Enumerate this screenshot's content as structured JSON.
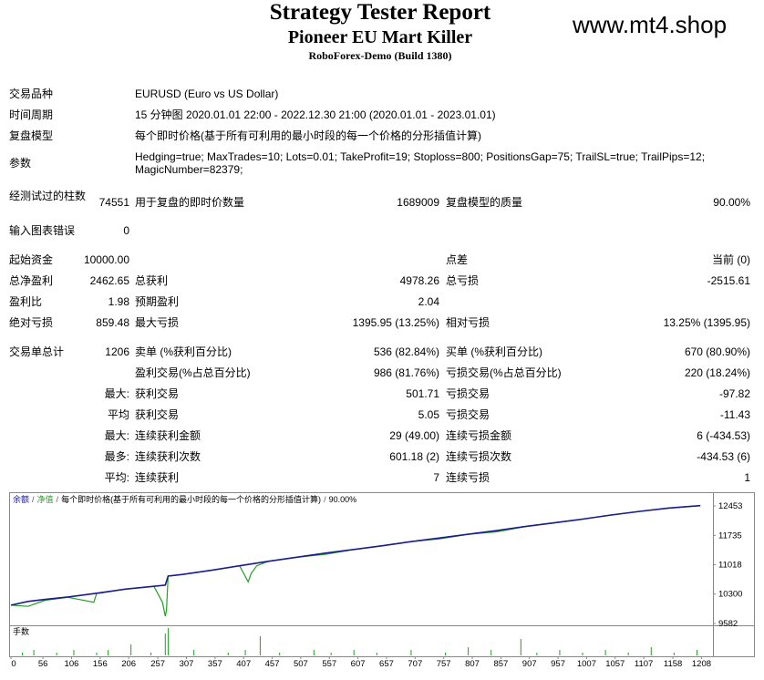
{
  "header": {
    "title": "Strategy Tester Report",
    "subtitle": "Pioneer EU Mart Killer",
    "server": "RoboForex-Demo (Build 1380)",
    "watermark": "www.mt4.shop"
  },
  "info": [
    [
      "交易品种",
      "EURUSD (Euro vs US Dollar)"
    ],
    [
      "时间周期",
      "15 分钟图 2020.01.01 22:00 - 2022.12.30 21:00 (2020.01.01 - 2023.01.01)"
    ],
    [
      "复盘模型",
      "每个即时价格(基于所有可利用的最小时段的每一个价格的分形插值计算)"
    ],
    [
      "参数",
      "Hedging=true; MaxTrades=10; Lots=0.01; TakeProfit=19; Stoploss=800; PositionsGap=75; TrailSL=true; TrailPips=12; MagicNumber=82379;"
    ]
  ],
  "stats": [
    [
      "经测试过的柱数",
      "74551",
      "用于复盘的即时价数量",
      "1689009",
      "复盘模型的质量",
      "90.00%"
    ],
    [
      "输入图表错误",
      "0",
      null,
      null,
      null,
      null
    ],
    [
      "起始资金",
      "10000.00",
      null,
      null,
      "点差",
      "当前 (0)"
    ],
    [
      "总净盈利",
      "2462.65",
      "总获利",
      "4978.26",
      "总亏损",
      "-2515.61"
    ],
    [
      "盈利比",
      "1.98",
      "预期盈利",
      "2.04",
      null,
      null
    ],
    [
      "绝对亏损",
      "859.48",
      "最大亏损",
      "1395.95 (13.25%)",
      "相对亏损",
      "13.25% (1395.95)"
    ],
    [
      "交易单总计",
      "1206",
      "卖单 (%获利百分比)",
      "536 (82.84%)",
      "买单 (%获利百分比)",
      "670 (80.90%)"
    ],
    [
      null,
      null,
      "盈利交易(%占总百分比)",
      "986 (81.76%)",
      "亏损交易(%占总百分比)",
      "220 (18.24%)"
    ],
    [
      null,
      "最大:",
      "获利交易",
      "501.71",
      "亏损交易",
      "-97.82"
    ],
    [
      null,
      "平均",
      "获利交易",
      "5.05",
      "亏损交易",
      "-11.43"
    ],
    [
      null,
      "最大:",
      "连续获利金额",
      "29 (49.00)",
      "连续亏损金额",
      "6 (-434.53)"
    ],
    [
      null,
      "最多:",
      "连续获利次数",
      "601.18 (2)",
      "连续亏损次数",
      "-434.53 (6)"
    ],
    [
      null,
      "平均:",
      "连续获利",
      "7",
      "连续亏损",
      "1"
    ]
  ],
  "graph": {
    "legend": [
      "余额",
      "净值",
      "每个即时价格(基于所有可利用的最小时段的每一个价格的分形插值计算)",
      "90.00%"
    ],
    "separator": "/",
    "lots_label": "手数",
    "xlim": [
      0,
      1228
    ],
    "ylim": [
      9582,
      12453
    ],
    "xticks": [
      0,
      56,
      106,
      156,
      206,
      257,
      307,
      357,
      407,
      457,
      507,
      557,
      607,
      657,
      707,
      757,
      807,
      857,
      907,
      957,
      1007,
      1057,
      1107,
      1158,
      1208
    ],
    "yticks": [
      12453,
      11735,
      11018,
      10300,
      9582
    ],
    "balance": {
      "color": "#1c1c8c",
      "x": [
        0,
        30,
        60,
        100,
        150,
        200,
        250,
        270,
        275,
        300,
        350,
        400,
        450,
        500,
        550,
        600,
        650,
        700,
        750,
        800,
        850,
        900,
        950,
        1000,
        1050,
        1100,
        1150,
        1206
      ],
      "values": [
        10030,
        10120,
        10170,
        10230,
        10320,
        10420,
        10490,
        10520,
        10740,
        10780,
        10880,
        10990,
        11100,
        11200,
        11300,
        11390,
        11480,
        11580,
        11670,
        11760,
        11850,
        11950,
        12040,
        12130,
        12230,
        12320,
        12400,
        12460
      ]
    },
    "equity": {
      "color": "#22a022",
      "x": [
        0,
        30,
        60,
        100,
        145,
        150,
        155,
        200,
        250,
        265,
        270,
        272,
        275,
        300,
        350,
        400,
        415,
        420,
        430,
        450,
        500,
        550,
        600,
        650,
        700,
        750,
        800,
        850,
        900,
        950,
        1000,
        1050,
        1100,
        1150,
        1206
      ],
      "values": [
        10030,
        10000,
        10150,
        10220,
        10100,
        10320,
        10320,
        10420,
        10490,
        10100,
        9760,
        9900,
        10740,
        10780,
        10880,
        10990,
        10600,
        10800,
        10990,
        11100,
        11200,
        11270,
        11390,
        11480,
        11580,
        11650,
        11760,
        11820,
        11950,
        12040,
        12130,
        12230,
        12320,
        12400,
        12460
      ]
    },
    "lots": {
      "color": "#22a022",
      "x": [
        20,
        40,
        80,
        110,
        150,
        170,
        210,
        245,
        270,
        275,
        320,
        380,
        410,
        436,
        470,
        530,
        560,
        600,
        640,
        700,
        760,
        800,
        840,
        892,
        920,
        960,
        1000,
        1040,
        1080,
        1120,
        1160,
        1200
      ],
      "values": [
        0.01,
        0.02,
        0.01,
        0.02,
        0.01,
        0.02,
        0.04,
        0.01,
        0.08,
        0.1,
        0.02,
        0.01,
        0.02,
        0.07,
        0.01,
        0.02,
        0.01,
        0.02,
        0.01,
        0.02,
        0.01,
        0.03,
        0.02,
        0.06,
        0.01,
        0.02,
        0.01,
        0.02,
        0.01,
        0.03,
        0.01,
        0.02
      ]
    }
  }
}
